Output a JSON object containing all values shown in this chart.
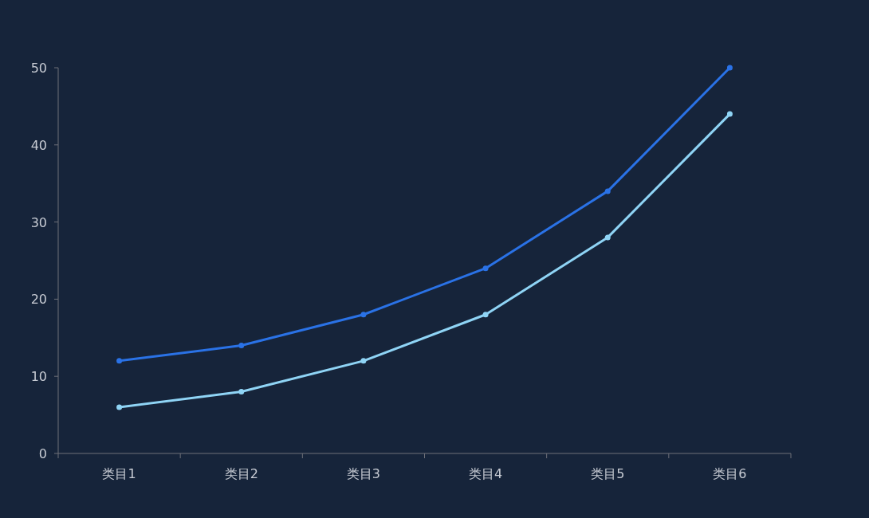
{
  "chart_data": {
    "type": "line",
    "categories": [
      "类目1",
      "类目2",
      "类目3",
      "类目4",
      "类目5",
      "类目6"
    ],
    "series": [
      {
        "color": "#2a72e6",
        "values": [
          12,
          14,
          18,
          24,
          34,
          50
        ]
      },
      {
        "color": "#8fd4f5",
        "values": [
          6,
          8,
          12,
          18,
          28,
          44
        ]
      }
    ],
    "ylim": [
      0,
      50
    ],
    "yticks": [
      0,
      10,
      20,
      30,
      40,
      50
    ],
    "marker": "circle",
    "line_style": "solid",
    "grid": false
  }
}
